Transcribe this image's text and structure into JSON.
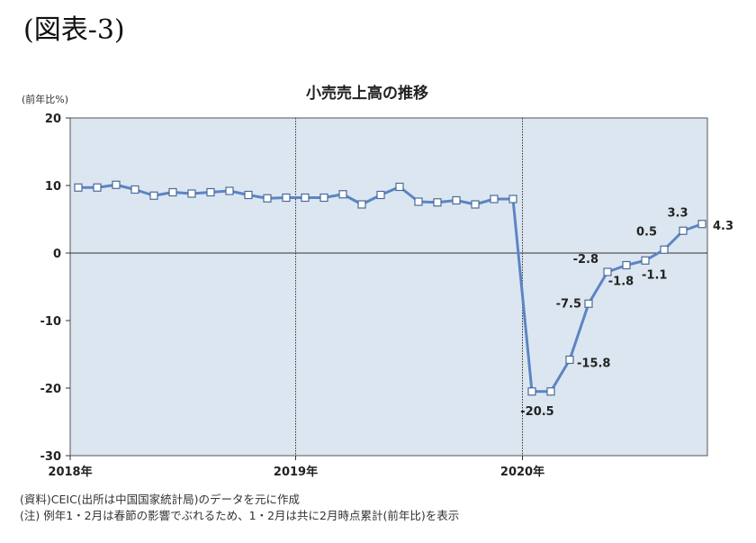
{
  "figure_label": "(図表-3)",
  "chart_data": {
    "type": "line",
    "title": "小売売上高の推移",
    "ylabel": "(前年比%)",
    "xlabel": "",
    "ylim": [
      -30,
      20
    ],
    "yticks": [
      20,
      10,
      0,
      -10,
      -20,
      -30
    ],
    "xtick_labels": [
      "2018年",
      "2019年",
      "2020年"
    ],
    "grid": false,
    "colors": {
      "plot_bg": "#dce6f1",
      "line": "#5b85c3",
      "marker_fill": "#ffffff",
      "marker_edge": "#4a6a9a"
    },
    "series": [
      {
        "values": [
          9.7,
          9.7,
          10.1,
          9.4,
          8.5,
          9.0,
          8.8,
          9.0,
          9.2,
          8.6,
          8.1,
          8.2,
          8.2,
          8.2,
          8.7,
          7.2,
          8.6,
          9.8,
          7.6,
          7.5,
          7.8,
          7.2,
          8.0,
          8.0,
          -20.5,
          -20.5,
          -15.8,
          -7.5,
          -2.8,
          -1.8,
          -1.1,
          0.5,
          3.3,
          4.3
        ]
      }
    ],
    "data_labels": [
      {
        "index": 24,
        "text": "-20.5"
      },
      {
        "index": 26,
        "text": "-15.8"
      },
      {
        "index": 27,
        "text": "-7.5"
      },
      {
        "index": 28,
        "text": "-2.8"
      },
      {
        "index": 29,
        "text": "-1.8"
      },
      {
        "index": 30,
        "text": "-1.1"
      },
      {
        "index": 31,
        "text": "0.5"
      },
      {
        "index": 32,
        "text": "3.3"
      },
      {
        "index": 33,
        "text": "4.3"
      }
    ]
  },
  "notes": [
    "(資料)CEIC(出所は中国国家統計局)のデータを元に作成",
    "(注) 例年1・2月は春節の影響でぶれるため、1・2月は共に2月時点累計(前年比)を表示"
  ]
}
